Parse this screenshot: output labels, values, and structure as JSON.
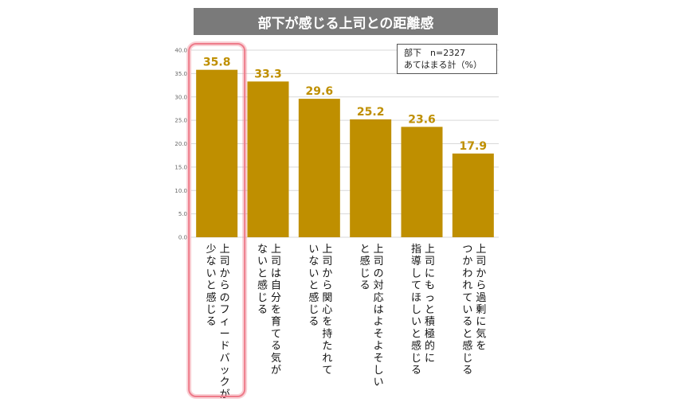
{
  "chart_data": {
    "type": "bar",
    "title": "部下が感じる上司との距離感",
    "legend": {
      "line1": "部下　n=2327",
      "line2": "あてはまる計（%）"
    },
    "categories": [
      [
        "上司からのフィードバックが",
        "少ないと感じる"
      ],
      [
        "上司は自分を育てる気が",
        "ないと感じる"
      ],
      [
        "上司から関心を持たれて",
        "いないと感じる"
      ],
      [
        "上司の対応はよそよそしい",
        "と感じる"
      ],
      [
        "上司にもっと積極的に",
        "指導してほしいと感じる"
      ],
      [
        "上司から過剰に気を",
        "つかわれていると感じる"
      ]
    ],
    "values": [
      35.8,
      33.3,
      29.6,
      25.2,
      23.6,
      17.9
    ],
    "value_labels": [
      "35.8",
      "33.3",
      "29.6",
      "25.2",
      "23.6",
      "17.9"
    ],
    "ylim": [
      0,
      40
    ],
    "yticks": [
      "0.0",
      "5.0",
      "10.0",
      "15.0",
      "20.0",
      "25.0",
      "30.0",
      "35.0",
      "40.0"
    ],
    "grid": true,
    "highlight_index": 0,
    "colors": {
      "bar": "#bf8f00",
      "value_label": "#bf8f00",
      "highlight": "#ee7b8a",
      "title_bg": "#7a7a7a",
      "grid": "#d9d9d9"
    }
  }
}
